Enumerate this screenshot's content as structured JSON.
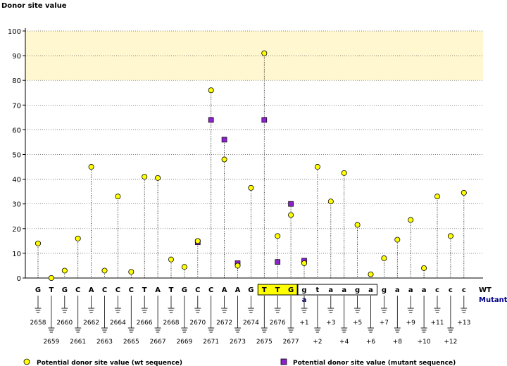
{
  "chart_data": {
    "type": "scatter",
    "title": "",
    "ylabel": "Donor site value",
    "xlabel": "",
    "ylim": [
      0,
      100
    ],
    "yticks": [
      0,
      10,
      20,
      30,
      40,
      50,
      60,
      70,
      80,
      90,
      100
    ],
    "highlight_band": [
      80,
      100
    ],
    "grid": true,
    "positions": [
      "2658",
      "2659",
      "2660",
      "2661",
      "2662",
      "2663",
      "2664",
      "2665",
      "2666",
      "2667",
      "2668",
      "2669",
      "2670",
      "2671",
      "2672",
      "2673",
      "2674",
      "2675",
      "2676",
      "2677",
      "+1",
      "+2",
      "+3",
      "+4",
      "+5",
      "+6",
      "+7",
      "+8",
      "+9",
      "+10",
      "+11",
      "+12",
      "+13"
    ],
    "wt_sequence": [
      "G",
      "T",
      "G",
      "C",
      "A",
      "C",
      "C",
      "C",
      "T",
      "A",
      "T",
      "G",
      "C",
      "C",
      "A",
      "A",
      "G",
      "T",
      "T",
      "G",
      "g",
      "t",
      "a",
      "a",
      "g",
      "a",
      "g",
      "a",
      "a",
      "a",
      "c",
      "c",
      "c"
    ],
    "mutant_sequence": [
      "",
      "",
      "",
      "",
      "",
      "",
      "",
      "",
      "",
      "",
      "",
      "",
      "",
      "",
      "",
      "",
      "",
      "",
      "",
      "",
      "a",
      "",
      "",
      "",
      "",
      "",
      "",
      "",
      "",
      "",
      "",
      "",
      ""
    ],
    "highlighted_exon_positions": [
      17,
      18,
      19
    ],
    "highlighted_intron_positions": [
      20,
      21,
      22,
      23,
      24,
      25
    ],
    "row_labels": {
      "wt": "WT",
      "mutant": "Mutant"
    },
    "series": [
      {
        "name": "Potential donor site value (wt sequence)",
        "color": "#ffff00",
        "marker": "circle",
        "values": [
          14,
          0,
          3,
          16,
          45,
          3,
          33,
          2.5,
          41,
          40.5,
          7.5,
          4.5,
          15,
          76,
          48,
          5,
          36.5,
          91,
          17,
          25.5,
          6,
          45,
          31,
          42.5,
          21.5,
          1.5,
          8,
          15.5,
          23.5,
          4,
          33,
          17,
          34.5
        ]
      },
      {
        "name": "Potential donor site value (mutant sequence)",
        "color": "#8b22cc",
        "marker": "square",
        "values": [
          null,
          null,
          null,
          null,
          null,
          null,
          null,
          null,
          null,
          null,
          null,
          null,
          14.5,
          64,
          56,
          6,
          null,
          64,
          6.5,
          30,
          7,
          null,
          null,
          null,
          null,
          null,
          null,
          null,
          null,
          null,
          null,
          null,
          null
        ]
      }
    ]
  },
  "legend": {
    "wt_label": "Potential donor site value (wt sequence)",
    "mutant_label": "Potential donor site value (mutant sequence)"
  },
  "colors": {
    "wt_marker": "#ffff00",
    "mutant_marker": "#8b22cc",
    "band": "#fff7d0",
    "box_highlight": "#ffff00",
    "mutant_text": "#00008b"
  }
}
